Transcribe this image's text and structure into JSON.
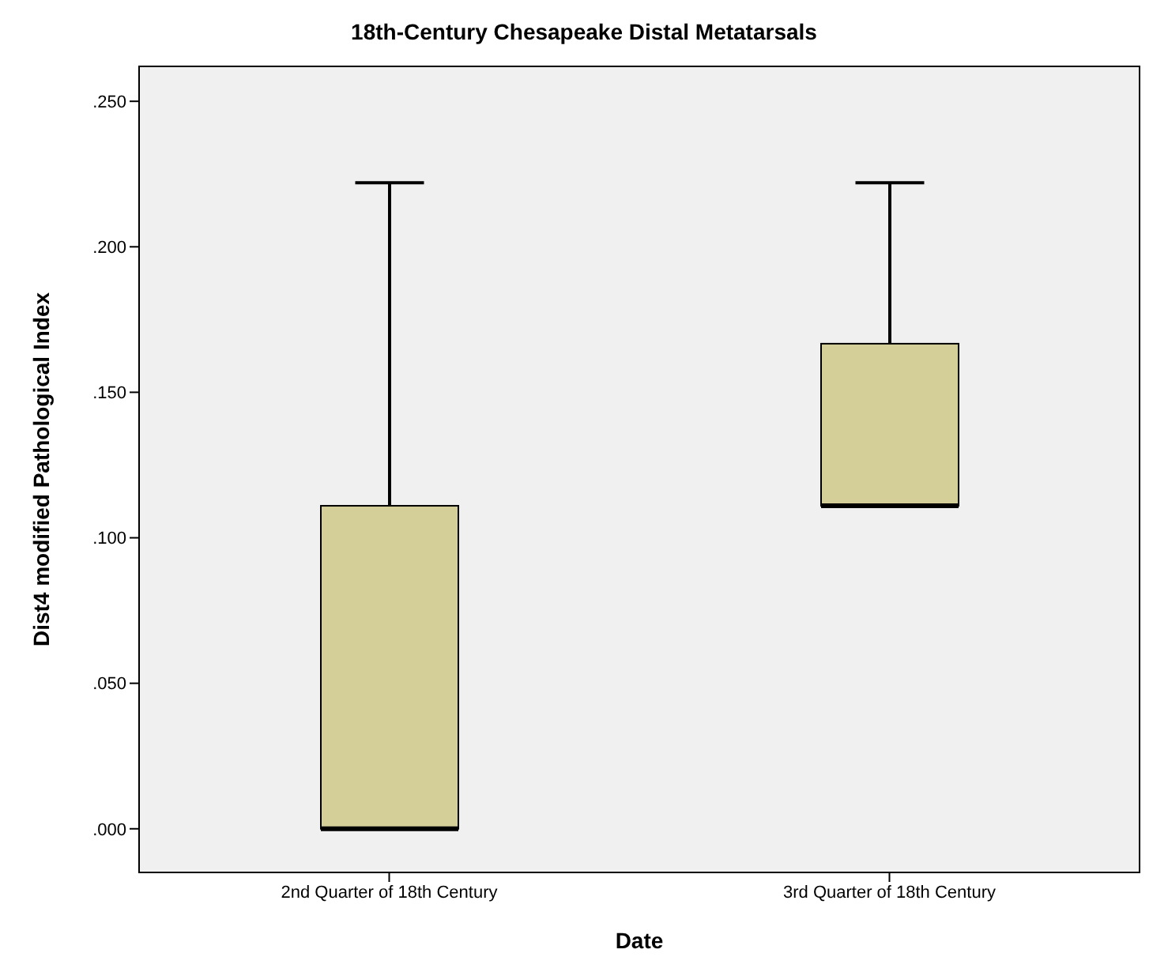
{
  "chart_data": {
    "type": "box",
    "title": "18th-Century Chesapeake Distal Metatarsals",
    "xlabel": "Date",
    "ylabel": "Dist4 modified Pathological Index",
    "categories": [
      "2nd Quarter of 18th Century",
      "3rd Quarter of 18th Century"
    ],
    "color": "#d4cf99",
    "boxes": [
      {
        "low": 0,
        "q1": 0,
        "median": 0,
        "q3": 0.111,
        "high": 0.222
      },
      {
        "low": 0.111,
        "q1": 0.111,
        "median": 0.111,
        "q3": 0.1667,
        "high": 0.222
      }
    ],
    "ylim": [
      -0.015,
      0.262
    ],
    "yticks": [
      {
        "value": 0,
        "label": ".000"
      },
      {
        "value": 0.05,
        "label": ".050"
      },
      {
        "value": 0.1,
        "label": ".100"
      },
      {
        "value": 0.15,
        "label": ".150"
      },
      {
        "value": 0.2,
        "label": ".200"
      },
      {
        "value": 0.25,
        "label": ".250"
      }
    ]
  }
}
